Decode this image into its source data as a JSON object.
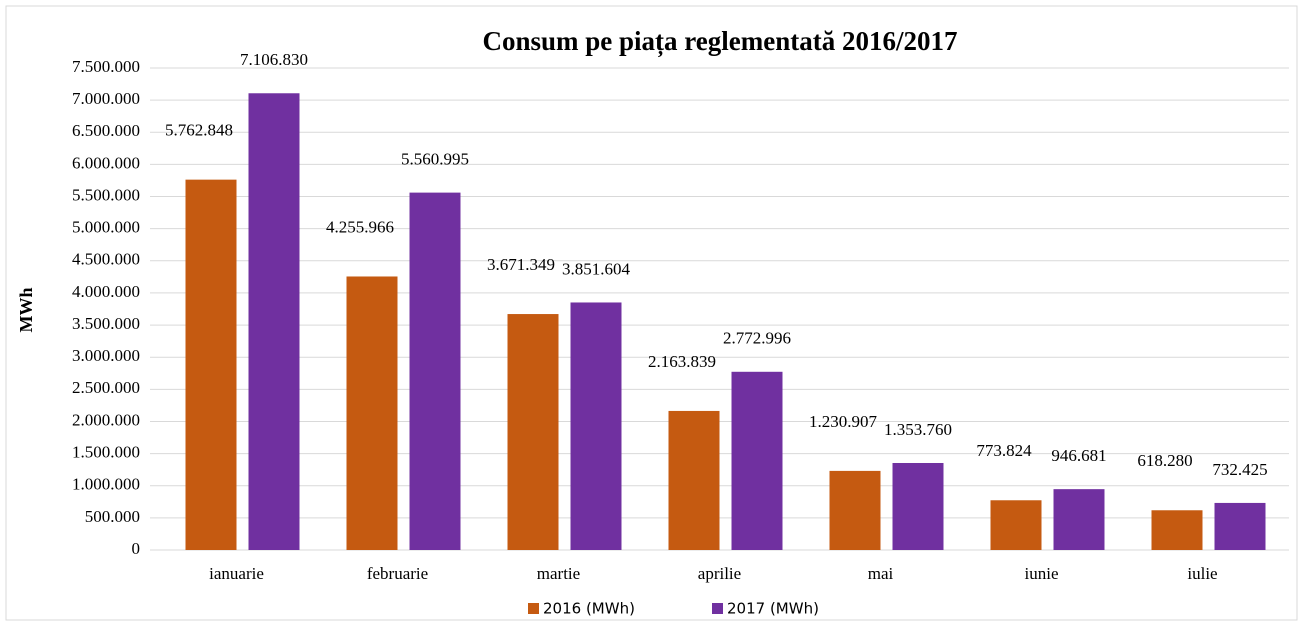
{
  "chart_data": {
    "type": "bar",
    "title": "Consum pe piața reglementată 2016/2017",
    "y_axis_label": "MWh",
    "categories": [
      "ianuarie",
      "februarie",
      "martie",
      "aprilie",
      "mai",
      "iunie",
      "iulie"
    ],
    "series": [
      {
        "name": "2016 (MWh)",
        "color": "#c55a11",
        "values": [
          5762848,
          4255966,
          3671349,
          2163839,
          1230907,
          773824,
          618280
        ],
        "value_labels": [
          "5.762.848",
          "4.255.966",
          "3.671.349",
          "2.163.839",
          "1.230.907",
          "773.824",
          "618.280"
        ]
      },
      {
        "name": "2017 (MWh)",
        "color": "#7030a0",
        "values": [
          7106830,
          5560995,
          3851604,
          2772996,
          1353760,
          946681,
          732425
        ],
        "value_labels": [
          "7.106.830",
          "5.560.995",
          "3.851.604",
          "2.772.996",
          "1.353.760",
          "946.681",
          "732.425"
        ]
      }
    ],
    "ylim": [
      0,
      7500000
    ],
    "yticks": [
      0,
      {
        "value": 500000,
        "label": "500.000"
      },
      {
        "value": 1000000,
        "label": "1.000.000"
      },
      {
        "value": 1500000,
        "label": "1.500.000"
      },
      {
        "value": 2000000,
        "label": "2.000.000"
      },
      {
        "value": 2500000,
        "label": "2.500.000"
      },
      {
        "value": 3000000,
        "label": "3.000.000"
      },
      {
        "value": 3500000,
        "label": "3.500.000"
      },
      {
        "value": 4000000,
        "label": "4.000.000"
      },
      {
        "value": 4500000,
        "label": "4.500.000"
      },
      {
        "value": 5000000,
        "label": "5.000.000"
      },
      {
        "value": 5500000,
        "label": "5.500.000"
      },
      {
        "value": 6000000,
        "label": "6.000.000"
      },
      {
        "value": 6500000,
        "label": "6.500.000"
      },
      {
        "value": 7000000,
        "label": "7.000.000"
      },
      {
        "value": 7500000,
        "label": "7.500.000"
      }
    ],
    "grid": true,
    "legend": "bottom"
  }
}
